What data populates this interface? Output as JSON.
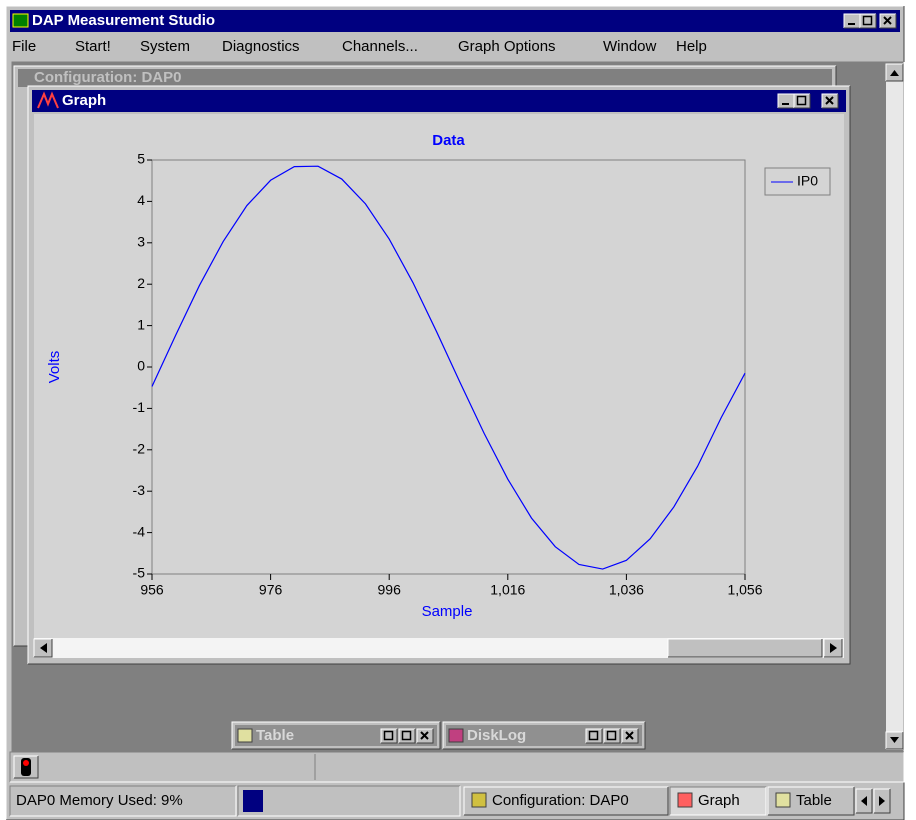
{
  "app": {
    "title": "DAP Measurement Studio",
    "menu": [
      "File",
      "Start!",
      "System",
      "Diagnostics",
      "Channels...",
      "Graph Options",
      "Window",
      "Help"
    ]
  },
  "background_window": {
    "title": "Configuration: DAP0"
  },
  "graph_window": {
    "title": "Graph"
  },
  "minimized_windows": [
    "Table",
    "DiskLog"
  ],
  "status_bar": {
    "memory": "DAP0 Memory Used:  9%"
  },
  "taskbar": [
    "Configuration: DAP0",
    "Graph",
    "Table"
  ],
  "chart_data": {
    "type": "line",
    "title": "Data",
    "x_label": "Sample",
    "y_label": "Volts",
    "x": [
      956,
      960,
      964,
      968,
      972,
      976,
      980,
      984,
      988,
      992,
      996,
      1000,
      1004,
      1008,
      1012,
      1016,
      1020,
      1024,
      1028,
      1032,
      1036,
      1040,
      1044,
      1048,
      1052,
      1056
    ],
    "series": [
      {
        "name": "IP0",
        "color": "#0000ff",
        "values": [
          -0.47,
          0.77,
          1.97,
          3.03,
          3.9,
          4.51,
          4.84,
          4.85,
          4.54,
          3.94,
          3.09,
          2.04,
          0.85,
          -0.39,
          -1.6,
          -2.71,
          -3.65,
          -4.34,
          -4.77,
          -4.88,
          -4.67,
          -4.15,
          -3.38,
          -2.4,
          -1.22,
          -0.15
        ]
      }
    ],
    "xlim": [
      956,
      1056
    ],
    "xticks": [
      956,
      976,
      996,
      {
        "value": 1016,
        "label": "1,016"
      },
      {
        "value": 1036,
        "label": "1,036"
      },
      {
        "value": 1056,
        "label": "1,056"
      }
    ],
    "ylim": [
      -5,
      5
    ],
    "yticks": [
      -5,
      -4,
      -3,
      -2,
      -1,
      0,
      1,
      2,
      3,
      4,
      5
    ],
    "legend": "top-right"
  }
}
